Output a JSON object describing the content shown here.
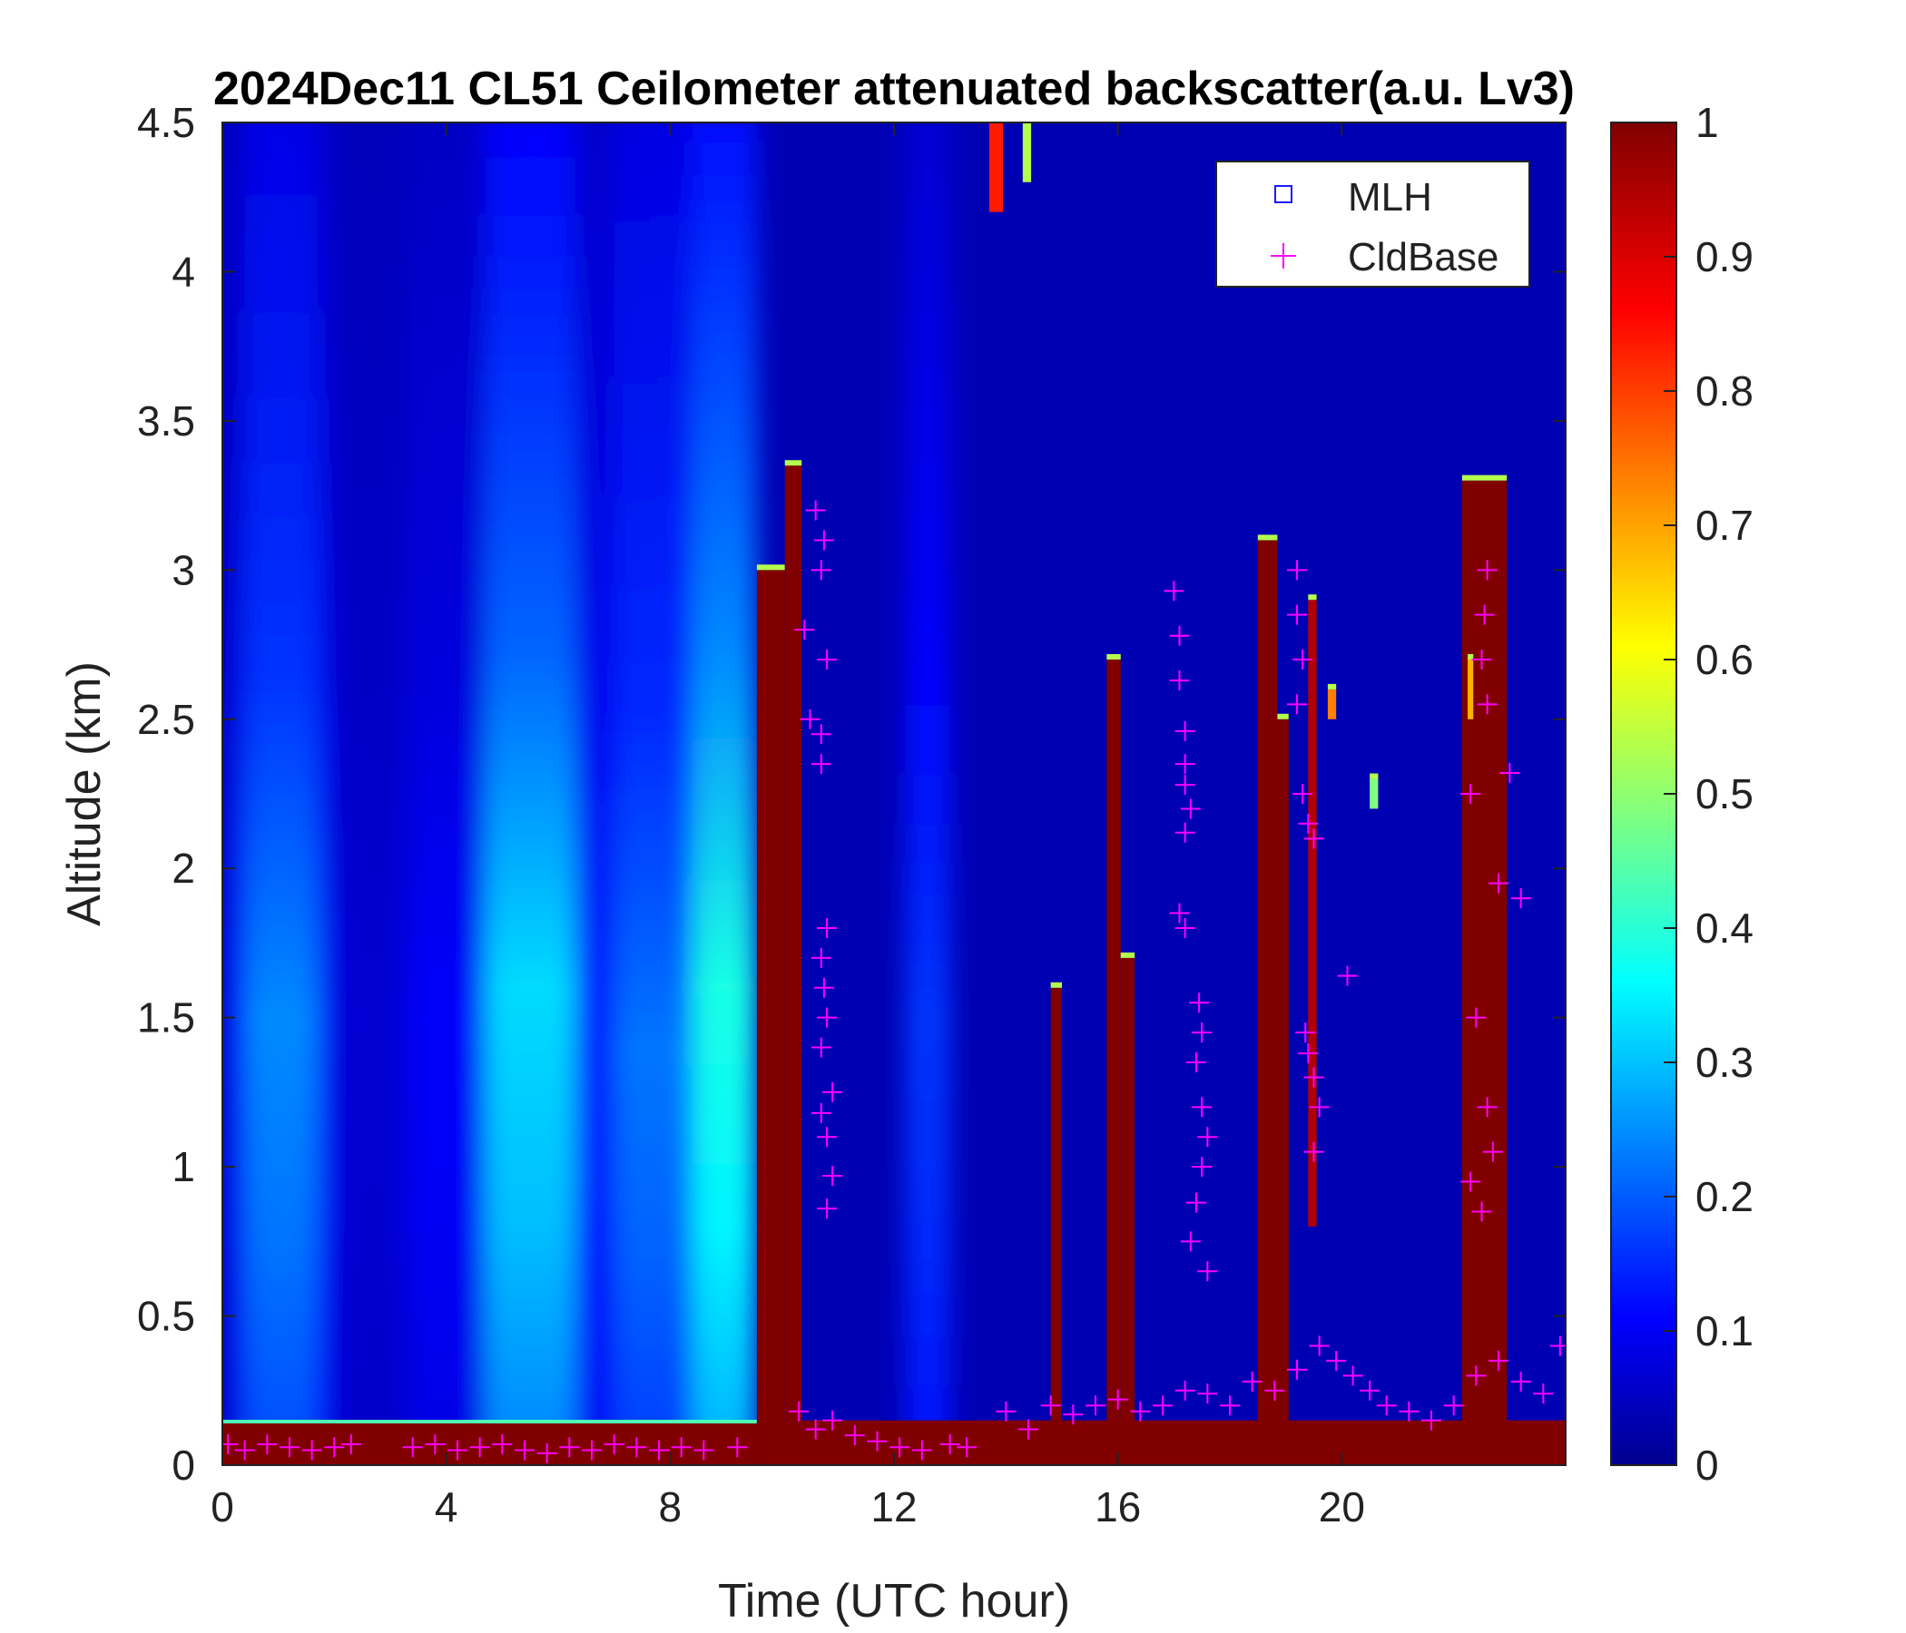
{
  "chart_data": {
    "type": "heatmap",
    "title": "2024Dec11 CL51 Ceilometer attenuated backscatter(a.u. Lv3)",
    "xlabel": "Time (UTC hour)",
    "ylabel": "Altitude (km)",
    "xlim": [
      0,
      24
    ],
    "ylim": [
      0,
      4.5
    ],
    "xticks": [
      0,
      4,
      8,
      12,
      16,
      20
    ],
    "xtick_labels": [
      "0",
      "4",
      "8",
      "12",
      "16",
      "20"
    ],
    "yticks": [
      0,
      0.5,
      1,
      1.5,
      2,
      2.5,
      3,
      3.5,
      4,
      4.5
    ],
    "ytick_labels": [
      "0",
      "0.5",
      "1",
      "1.5",
      "2",
      "2.5",
      "3",
      "3.5",
      "4",
      "4.5"
    ],
    "colorbar": {
      "colormap": "jet",
      "clim": [
        0,
        1
      ],
      "ticks": [
        0,
        0.1,
        0.2,
        0.3,
        0.4,
        0.5,
        0.6,
        0.7,
        0.8,
        0.9,
        1
      ],
      "tick_labels": [
        "0",
        "0.1",
        "0.2",
        "0.3",
        "0.4",
        "0.5",
        "0.6",
        "0.7",
        "0.8",
        "0.9",
        "1"
      ]
    },
    "legend": {
      "location": "top-right",
      "entries": [
        {
          "label": "MLH",
          "marker": "square",
          "color": "#1a1aff"
        },
        {
          "label": "CldBase",
          "marker": "plus",
          "color": "#ff00ff"
        }
      ]
    },
    "background_value": 0.05,
    "aerosol_columns": [
      {
        "t0": 0.0,
        "t1": 0.4,
        "value": 0.12,
        "alt_peak": 1.5
      },
      {
        "t0": 0.4,
        "t1": 1.7,
        "value": 0.26,
        "alt_peak": 1.5
      },
      {
        "t0": 1.7,
        "t1": 2.0,
        "value": 0.14,
        "alt_peak": 1.5
      },
      {
        "t0": 2.0,
        "t1": 3.3,
        "value": 0.08,
        "alt_peak": 1.5
      },
      {
        "t0": 3.3,
        "t1": 4.7,
        "value": 0.12,
        "alt_peak": 1.5
      },
      {
        "t0": 4.7,
        "t1": 6.3,
        "value": 0.34,
        "alt_peak": 1.6
      },
      {
        "t0": 6.3,
        "t1": 7.0,
        "value": 0.14,
        "alt_peak": 1.6
      },
      {
        "t0": 7.0,
        "t1": 8.4,
        "value": 0.24,
        "alt_peak": 1.4
      },
      {
        "t0": 8.4,
        "t1": 9.55,
        "value": 0.4,
        "alt_peak": 1.6
      },
      {
        "t0": 12.2,
        "t1": 13.0,
        "value": 0.18,
        "alt_peak": 1.5
      }
    ],
    "boundary_layer": {
      "t0": 0.0,
      "t1": 9.55,
      "top_km": 0.14,
      "value": 1.0
    },
    "cloud_columns": [
      {
        "t0": 9.55,
        "t1": 10.05,
        "bottom": 0.0,
        "top": 3.0,
        "value": 1.0
      },
      {
        "t0": 10.05,
        "t1": 10.35,
        "bottom": 0.0,
        "top": 3.35,
        "value": 1.0
      },
      {
        "t0": 13.7,
        "t1": 13.95,
        "bottom": 4.2,
        "top": 4.5,
        "value": 0.85
      },
      {
        "t0": 14.3,
        "t1": 14.45,
        "bottom": 4.3,
        "top": 4.5,
        "value": 0.55
      },
      {
        "t0": 14.8,
        "t1": 15.0,
        "bottom": 0.0,
        "top": 1.6,
        "value": 1.0
      },
      {
        "t0": 15.8,
        "t1": 16.05,
        "bottom": 0.0,
        "top": 2.7,
        "value": 1.0
      },
      {
        "t0": 16.05,
        "t1": 16.3,
        "bottom": 0.0,
        "top": 1.7,
        "value": 1.0
      },
      {
        "t0": 18.5,
        "t1": 18.85,
        "bottom": 0.0,
        "top": 3.1,
        "value": 1.0
      },
      {
        "t0": 18.85,
        "t1": 19.05,
        "bottom": 0.0,
        "top": 2.5,
        "value": 1.0
      },
      {
        "t0": 19.4,
        "t1": 19.55,
        "bottom": 0.8,
        "top": 2.9,
        "value": 0.95
      },
      {
        "t0": 19.75,
        "t1": 19.9,
        "bottom": 2.5,
        "top": 2.6,
        "value": 0.75
      },
      {
        "t0": 20.5,
        "t1": 20.65,
        "bottom": 2.2,
        "top": 2.3,
        "value": 0.5
      },
      {
        "t0": 22.15,
        "t1": 22.95,
        "bottom": 0.0,
        "top": 3.3,
        "value": 1.0
      },
      {
        "t0": 22.25,
        "t1": 22.35,
        "bottom": 2.5,
        "top": 2.7,
        "value": 0.7
      }
    ],
    "mixing_layer_layer": {
      "t0": 9.55,
      "t1": 24.0,
      "top_km": 0.15,
      "value": 1.0
    },
    "series": [
      {
        "name": "CldBase",
        "type": "scatter",
        "marker": "plus",
        "points": [
          [
            0.1,
            0.07
          ],
          [
            0.4,
            0.05
          ],
          [
            0.8,
            0.07
          ],
          [
            1.2,
            0.06
          ],
          [
            1.6,
            0.05
          ],
          [
            2.0,
            0.06
          ],
          [
            2.3,
            0.07
          ],
          [
            3.4,
            0.06
          ],
          [
            3.8,
            0.07
          ],
          [
            4.2,
            0.05
          ],
          [
            4.6,
            0.06
          ],
          [
            5.0,
            0.07
          ],
          [
            5.4,
            0.05
          ],
          [
            5.8,
            0.04
          ],
          [
            6.2,
            0.06
          ],
          [
            6.6,
            0.05
          ],
          [
            7.0,
            0.07
          ],
          [
            7.4,
            0.06
          ],
          [
            7.8,
            0.05
          ],
          [
            8.2,
            0.06
          ],
          [
            8.6,
            0.05
          ],
          [
            9.2,
            0.06
          ],
          [
            10.3,
            0.18
          ],
          [
            10.6,
            0.12
          ],
          [
            10.9,
            0.15
          ],
          [
            11.3,
            0.1
          ],
          [
            11.7,
            0.08
          ],
          [
            12.1,
            0.06
          ],
          [
            12.5,
            0.05
          ],
          [
            13.0,
            0.07
          ],
          [
            13.3,
            0.06
          ],
          [
            14.0,
            0.18
          ],
          [
            14.4,
            0.12
          ],
          [
            14.8,
            0.2
          ],
          [
            15.2,
            0.17
          ],
          [
            15.6,
            0.2
          ],
          [
            16.0,
            0.22
          ],
          [
            16.4,
            0.18
          ],
          [
            16.8,
            0.2
          ],
          [
            17.2,
            0.25
          ],
          [
            17.6,
            0.24
          ],
          [
            18.0,
            0.2
          ],
          [
            18.4,
            0.28
          ],
          [
            18.8,
            0.25
          ],
          [
            19.2,
            0.32
          ],
          [
            19.6,
            0.4
          ],
          [
            19.9,
            0.35
          ],
          [
            20.2,
            0.3
          ],
          [
            20.5,
            0.25
          ],
          [
            20.8,
            0.2
          ],
          [
            21.2,
            0.18
          ],
          [
            21.6,
            0.15
          ],
          [
            22.0,
            0.2
          ],
          [
            22.4,
            0.3
          ],
          [
            22.8,
            0.35
          ],
          [
            23.2,
            0.28
          ],
          [
            23.6,
            0.24
          ],
          [
            23.9,
            0.4
          ],
          [
            10.6,
            3.2
          ],
          [
            10.7,
            3.0
          ],
          [
            10.75,
            3.1
          ],
          [
            10.4,
            2.8
          ],
          [
            10.8,
            2.7
          ],
          [
            10.5,
            2.5
          ],
          [
            10.7,
            2.45
          ],
          [
            10.7,
            2.35
          ],
          [
            10.8,
            1.8
          ],
          [
            10.7,
            1.7
          ],
          [
            10.75,
            1.6
          ],
          [
            10.8,
            1.5
          ],
          [
            10.7,
            1.4
          ],
          [
            10.9,
            1.25
          ],
          [
            10.7,
            1.18
          ],
          [
            10.8,
            1.1
          ],
          [
            10.9,
            0.97
          ],
          [
            10.8,
            0.86
          ],
          [
            17.0,
            2.93
          ],
          [
            17.1,
            2.78
          ],
          [
            17.1,
            2.63
          ],
          [
            17.2,
            2.46
          ],
          [
            17.2,
            2.35
          ],
          [
            17.2,
            2.28
          ],
          [
            17.3,
            2.2
          ],
          [
            17.2,
            2.12
          ],
          [
            17.1,
            1.85
          ],
          [
            17.2,
            1.8
          ],
          [
            17.45,
            1.55
          ],
          [
            17.5,
            1.45
          ],
          [
            17.4,
            1.35
          ],
          [
            17.5,
            1.2
          ],
          [
            17.6,
            1.1
          ],
          [
            17.5,
            1.0
          ],
          [
            17.4,
            0.88
          ],
          [
            17.3,
            0.75
          ],
          [
            17.6,
            0.65
          ],
          [
            19.2,
            3.0
          ],
          [
            19.2,
            2.85
          ],
          [
            19.3,
            2.7
          ],
          [
            19.2,
            2.55
          ],
          [
            19.3,
            2.25
          ],
          [
            19.4,
            2.15
          ],
          [
            19.5,
            2.1
          ],
          [
            19.35,
            1.45
          ],
          [
            19.4,
            1.38
          ],
          [
            19.5,
            1.3
          ],
          [
            19.6,
            1.2
          ],
          [
            19.5,
            1.05
          ],
          [
            20.1,
            1.64
          ],
          [
            22.6,
            3.0
          ],
          [
            22.55,
            2.85
          ],
          [
            22.5,
            2.7
          ],
          [
            22.6,
            2.55
          ],
          [
            23.0,
            2.32
          ],
          [
            22.3,
            2.25
          ],
          [
            22.8,
            1.95
          ],
          [
            23.2,
            1.9
          ],
          [
            22.4,
            1.5
          ],
          [
            22.6,
            1.2
          ],
          [
            22.7,
            1.05
          ],
          [
            22.3,
            0.95
          ],
          [
            22.5,
            0.85
          ]
        ]
      },
      {
        "name": "MLH",
        "type": "scatter",
        "marker": "square",
        "points": []
      }
    ]
  }
}
